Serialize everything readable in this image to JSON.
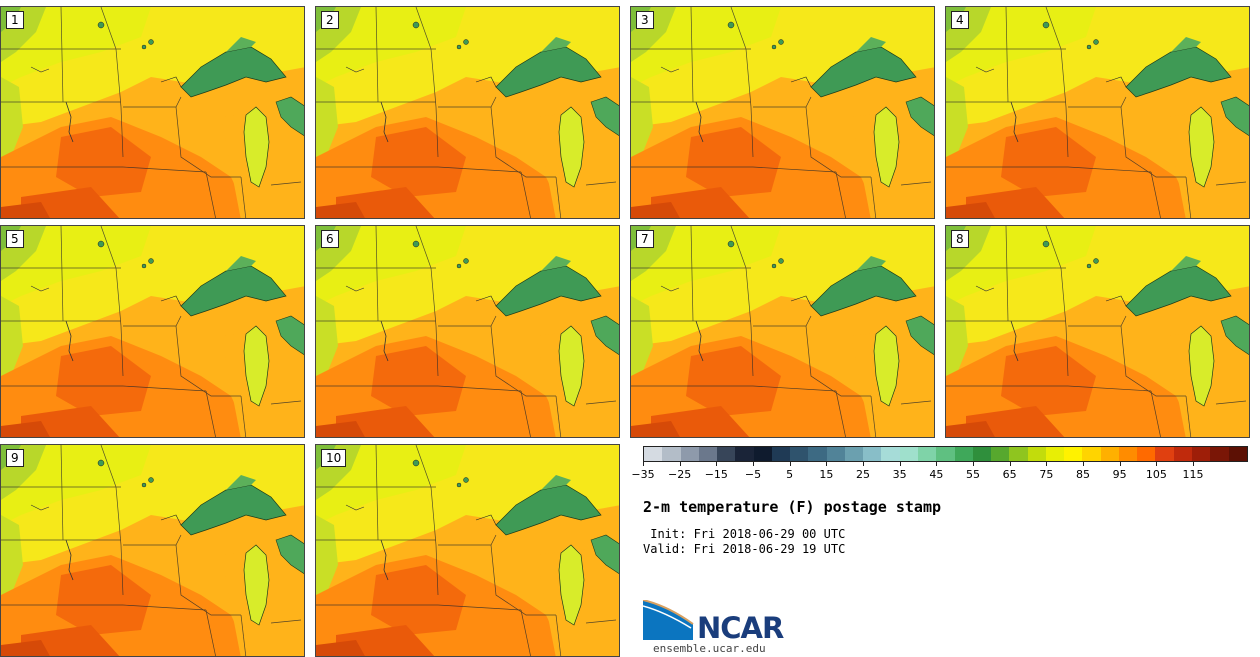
{
  "panels": [
    {
      "label": "1"
    },
    {
      "label": "2"
    },
    {
      "label": "3"
    },
    {
      "label": "4"
    },
    {
      "label": "5"
    },
    {
      "label": "6"
    },
    {
      "label": "7"
    },
    {
      "label": "8"
    },
    {
      "label": "9"
    },
    {
      "label": "10"
    }
  ],
  "colorbar": {
    "colors": [
      "#d5dbe2",
      "#b3bdc8",
      "#8e9aab",
      "#6b788c",
      "#374559",
      "#1a2438",
      "#0f1b2e",
      "#1f3a55",
      "#2f536d",
      "#3d6a83",
      "#518398",
      "#6ba0af",
      "#88bec8",
      "#a6dcd8",
      "#9fe0cc",
      "#7fd3a8",
      "#5fc081",
      "#3fa85a",
      "#2f8f3c",
      "#57a82e",
      "#8fc51f",
      "#c2dc0c",
      "#e8ee05",
      "#fff200",
      "#ffd400",
      "#ffb000",
      "#ff8c00",
      "#ff6a00",
      "#e04010",
      "#c02a0c",
      "#9e1e08",
      "#7a1606",
      "#5c1004"
    ],
    "ticks": [
      "−35",
      "−25",
      "−15",
      "−5",
      "5",
      "15",
      "25",
      "35",
      "45",
      "55",
      "65",
      "75",
      "85",
      "95",
      "105",
      "115"
    ]
  },
  "title": "2-m temperature (F) postage stamp",
  "init": " Init: Fri 2018-06-29 00 UTC",
  "valid": "Valid: Fri 2018-06-29 19 UTC",
  "logo": {
    "name": "NCAR",
    "url": "ensemble.ucar.edu"
  }
}
